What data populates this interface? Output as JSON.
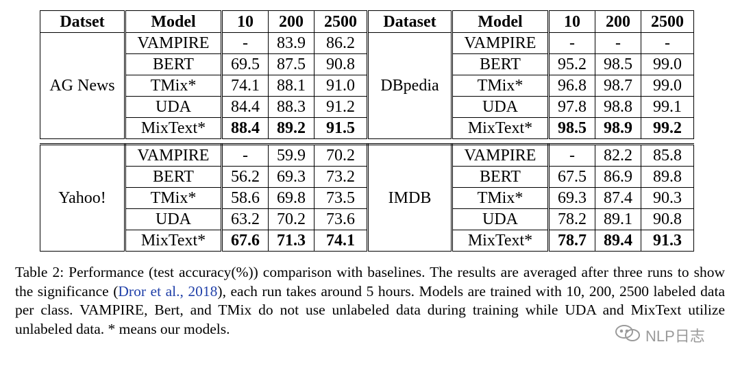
{
  "table": {
    "headers": [
      "Datset",
      "Model",
      "10",
      "200",
      "2500",
      "Dataset",
      "Model",
      "10",
      "200",
      "2500"
    ],
    "blocks": [
      {
        "left_dataset": "AG News",
        "right_dataset": "DBpedia",
        "rows": [
          {
            "model": "VAMPIRE",
            "l": [
              "-",
              "83.9",
              "86.2"
            ],
            "r": [
              "-",
              "-",
              "-"
            ],
            "bold": false
          },
          {
            "model": "BERT",
            "l": [
              "69.5",
              "87.5",
              "90.8"
            ],
            "r": [
              "95.2",
              "98.5",
              "99.0"
            ],
            "bold": false
          },
          {
            "model": "TMix*",
            "l": [
              "74.1",
              "88.1",
              "91.0"
            ],
            "r": [
              "96.8",
              "98.7",
              "99.0"
            ],
            "bold": false
          },
          {
            "model": "UDA",
            "l": [
              "84.4",
              "88.3",
              "91.2"
            ],
            "r": [
              "97.8",
              "98.8",
              "99.1"
            ],
            "bold": false
          },
          {
            "model": "MixText*",
            "l": [
              "88.4",
              "89.2",
              "91.5"
            ],
            "r": [
              "98.5",
              "98.9",
              "99.2"
            ],
            "bold": true
          }
        ]
      },
      {
        "left_dataset": "Yahoo!",
        "right_dataset": "IMDB",
        "rows": [
          {
            "model": "VAMPIRE",
            "l": [
              "-",
              "59.9",
              "70.2"
            ],
            "r": [
              "-",
              "82.2",
              "85.8"
            ],
            "bold": false
          },
          {
            "model": "BERT",
            "l": [
              "56.2",
              "69.3",
              "73.2"
            ],
            "r": [
              "67.5",
              "86.9",
              "89.8"
            ],
            "bold": false
          },
          {
            "model": "TMix*",
            "l": [
              "58.6",
              "69.8",
              "73.5"
            ],
            "r": [
              "69.3",
              "87.4",
              "90.3"
            ],
            "bold": false
          },
          {
            "model": "UDA",
            "l": [
              "63.2",
              "70.2",
              "73.6"
            ],
            "r": [
              "78.2",
              "89.1",
              "90.8"
            ],
            "bold": false
          },
          {
            "model": "MixText*",
            "l": [
              "67.6",
              "71.3",
              "74.1"
            ],
            "r": [
              "78.7",
              "89.4",
              "91.3"
            ],
            "bold": true
          }
        ]
      }
    ]
  },
  "caption": {
    "part1": "Table 2: Performance (test accuracy(%)) comparison with baselines. The results are averaged after three runs to show the significance (",
    "citation": "Dror et al., 2018",
    "part2": "), each run takes around 5 hours. Models are trained with 10, 200, 2500 labeled data per class. VAMPIRE, Bert, and TMix do not use unlabeled data during training while UDA and MixText utilize unlabeled data. * means our models."
  },
  "watermark": {
    "text": "NLP日志",
    "icon": "wechat-icon"
  },
  "colors": {
    "link": "#1f3fa8",
    "watermark": "#9a9a9a"
  }
}
